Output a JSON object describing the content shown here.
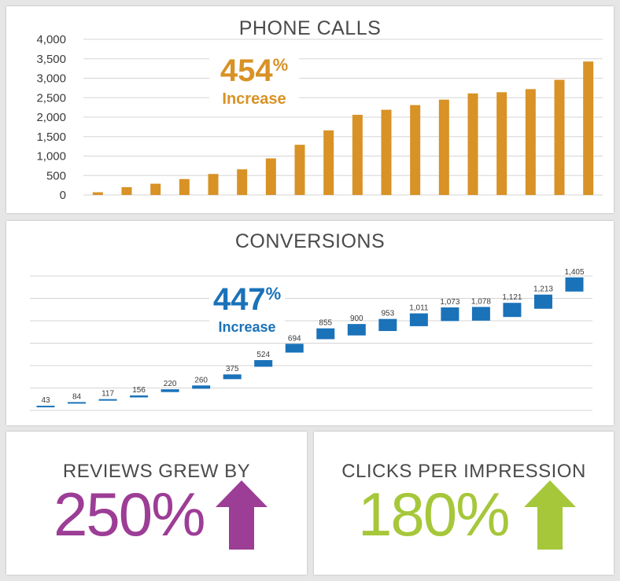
{
  "colors": {
    "phone": "#d89225",
    "conversions": "#1a72b9",
    "reviews": "#9c3d96",
    "clicks": "#a6c73a",
    "grid": "#d5d5d5",
    "text": "#4a4a4a"
  },
  "chart_data": [
    {
      "type": "bar",
      "title": "PHONE CALLS",
      "x": [
        1,
        2,
        3,
        4,
        5,
        6,
        7,
        8,
        9,
        10,
        11,
        12,
        13,
        14,
        15,
        16,
        17,
        18
      ],
      "values": [
        70,
        200,
        290,
        410,
        540,
        660,
        940,
        1290,
        1660,
        2060,
        2190,
        2310,
        2450,
        2610,
        2640,
        2720,
        2960,
        3430
      ],
      "ylim": [
        0,
        4000
      ],
      "yticks": [
        "0",
        "500",
        "1,000",
        "1,500",
        "2,000",
        "2,500",
        "3,000",
        "3,500",
        "4,000"
      ],
      "ytick_values": [
        0,
        500,
        1000,
        1500,
        2000,
        2500,
        3000,
        3500,
        4000
      ],
      "grid": true,
      "callout": {
        "value": "454",
        "unit": "%",
        "text": "Increase"
      }
    },
    {
      "type": "line",
      "title": "CONVERSIONS",
      "x": [
        1,
        2,
        3,
        4,
        5,
        6,
        7,
        8,
        9,
        10,
        11,
        12,
        13,
        14,
        15,
        16,
        17,
        18
      ],
      "values": [
        43,
        84,
        117,
        156,
        220,
        260,
        375,
        524,
        694,
        855,
        900,
        953,
        1011,
        1073,
        1078,
        1121,
        1213,
        1405
      ],
      "labels": [
        "43",
        "84",
        "117",
        "156",
        "220",
        "260",
        "375",
        "524",
        "694",
        "855",
        "900",
        "953",
        "1,011",
        "1,073",
        "1,078",
        "1,121",
        "1,213",
        "1,405"
      ],
      "ylim": [
        0,
        1500
      ],
      "grid": true,
      "callout": {
        "value": "447",
        "unit": "%",
        "text": "Increase"
      }
    }
  ],
  "reviews": {
    "title": "REVIEWS GREW BY",
    "value": "250%"
  },
  "clicks": {
    "title": "CLICKS PER IMPRESSION",
    "value": "180%"
  }
}
